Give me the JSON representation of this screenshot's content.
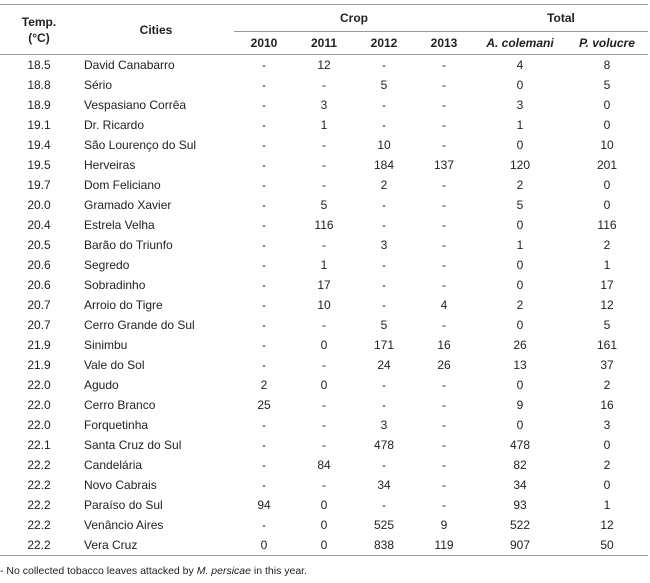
{
  "header": {
    "temp_label": "Temp.",
    "temp_unit": "(°C)",
    "cities_label": "Cities",
    "crop_label": "Crop",
    "total_label": "Total",
    "years": [
      "2010",
      "2011",
      "2012",
      "2013"
    ],
    "species": [
      "A. colemani",
      "P. volucre"
    ]
  },
  "rows": [
    {
      "temp": "18.5",
      "city": "David Canabarro",
      "y2010": "-",
      "y2011": "12",
      "y2012": "-",
      "y2013": "-",
      "colemani": "4",
      "volucre": "8"
    },
    {
      "temp": "18.8",
      "city": "Sério",
      "y2010": "-",
      "y2011": "-",
      "y2012": "5",
      "y2013": "-",
      "colemani": "0",
      "volucre": "5"
    },
    {
      "temp": "18.9",
      "city": "Vespasiano Corrêa",
      "y2010": "-",
      "y2011": "3",
      "y2012": "-",
      "y2013": "-",
      "colemani": "3",
      "volucre": "0"
    },
    {
      "temp": "19.1",
      "city": "Dr. Ricardo",
      "y2010": "-",
      "y2011": "1",
      "y2012": "-",
      "y2013": "-",
      "colemani": "1",
      "volucre": "0"
    },
    {
      "temp": "19.4",
      "city": "São Lourenço do Sul",
      "y2010": "-",
      "y2011": "-",
      "y2012": "10",
      "y2013": "-",
      "colemani": "0",
      "volucre": "10"
    },
    {
      "temp": "19.5",
      "city": "Herveiras",
      "y2010": "-",
      "y2011": "-",
      "y2012": "184",
      "y2013": "137",
      "colemani": "120",
      "volucre": "201"
    },
    {
      "temp": "19.7",
      "city": "Dom Feliciano",
      "y2010": "-",
      "y2011": "-",
      "y2012": "2",
      "y2013": "-",
      "colemani": "2",
      "volucre": "0"
    },
    {
      "temp": "20.0",
      "city": "Gramado Xavier",
      "y2010": "-",
      "y2011": "5",
      "y2012": "-",
      "y2013": "-",
      "colemani": "5",
      "volucre": "0"
    },
    {
      "temp": "20.4",
      "city": "Estrela Velha",
      "y2010": "-",
      "y2011": "116",
      "y2012": "-",
      "y2013": "-",
      "colemani": "0",
      "volucre": "116"
    },
    {
      "temp": "20.5",
      "city": "Barão do Triunfo",
      "y2010": "-",
      "y2011": "-",
      "y2012": "3",
      "y2013": "-",
      "colemani": "1",
      "volucre": "2"
    },
    {
      "temp": "20.6",
      "city": "Segredo",
      "y2010": "-",
      "y2011": "1",
      "y2012": "-",
      "y2013": "-",
      "colemani": "0",
      "volucre": "1"
    },
    {
      "temp": "20.6",
      "city": "Sobradinho",
      "y2010": "-",
      "y2011": "17",
      "y2012": "-",
      "y2013": "-",
      "colemani": "0",
      "volucre": "17"
    },
    {
      "temp": "20.7",
      "city": "Arroio do Tigre",
      "y2010": "-",
      "y2011": "10",
      "y2012": "-",
      "y2013": "4",
      "colemani": "2",
      "volucre": "12"
    },
    {
      "temp": "20.7",
      "city": "Cerro Grande do Sul",
      "y2010": "-",
      "y2011": "-",
      "y2012": "5",
      "y2013": "-",
      "colemani": "0",
      "volucre": "5"
    },
    {
      "temp": "21.9",
      "city": "Sinimbu",
      "y2010": "-",
      "y2011": "0",
      "y2012": "171",
      "y2013": "16",
      "colemani": "26",
      "volucre": "161"
    },
    {
      "temp": "21.9",
      "city": "Vale do Sol",
      "y2010": "-",
      "y2011": "-",
      "y2012": "24",
      "y2013": "26",
      "colemani": "13",
      "volucre": "37"
    },
    {
      "temp": "22.0",
      "city": "Agudo",
      "y2010": "2",
      "y2011": "0",
      "y2012": "-",
      "y2013": "-",
      "colemani": "0",
      "volucre": "2"
    },
    {
      "temp": "22.0",
      "city": "Cerro Branco",
      "y2010": "25",
      "y2011": "-",
      "y2012": "-",
      "y2013": "-",
      "colemani": "9",
      "volucre": "16"
    },
    {
      "temp": "22.0",
      "city": "Forquetinha",
      "y2010": "-",
      "y2011": "-",
      "y2012": "3",
      "y2013": "-",
      "colemani": "0",
      "volucre": "3"
    },
    {
      "temp": "22.1",
      "city": "Santa Cruz do Sul",
      "y2010": "-",
      "y2011": "-",
      "y2012": "478",
      "y2013": "-",
      "colemani": "478",
      "volucre": "0"
    },
    {
      "temp": "22.2",
      "city": "Candelária",
      "y2010": "-",
      "y2011": "84",
      "y2012": "-",
      "y2013": "-",
      "colemani": "82",
      "volucre": "2"
    },
    {
      "temp": "22.2",
      "city": "Novo Cabrais",
      "y2010": "-",
      "y2011": "-",
      "y2012": "34",
      "y2013": "-",
      "colemani": "34",
      "volucre": "0"
    },
    {
      "temp": "22.2",
      "city": "Paraíso do Sul",
      "y2010": "94",
      "y2011": "0",
      "y2012": "-",
      "y2013": "-",
      "colemani": "93",
      "volucre": "1"
    },
    {
      "temp": "22.2",
      "city": "Venâncio Aires",
      "y2010": "-",
      "y2011": "0",
      "y2012": "525",
      "y2013": "9",
      "colemani": "522",
      "volucre": "12"
    },
    {
      "temp": "22.2",
      "city": "Vera Cruz",
      "y2010": "0",
      "y2011": "0",
      "y2012": "838",
      "y2013": "119",
      "colemani": "907",
      "volucre": "50"
    }
  ],
  "footnote": {
    "prefix": "- No collected tobacco leaves attacked by ",
    "species": "M. persicae",
    "suffix": " in this year."
  }
}
